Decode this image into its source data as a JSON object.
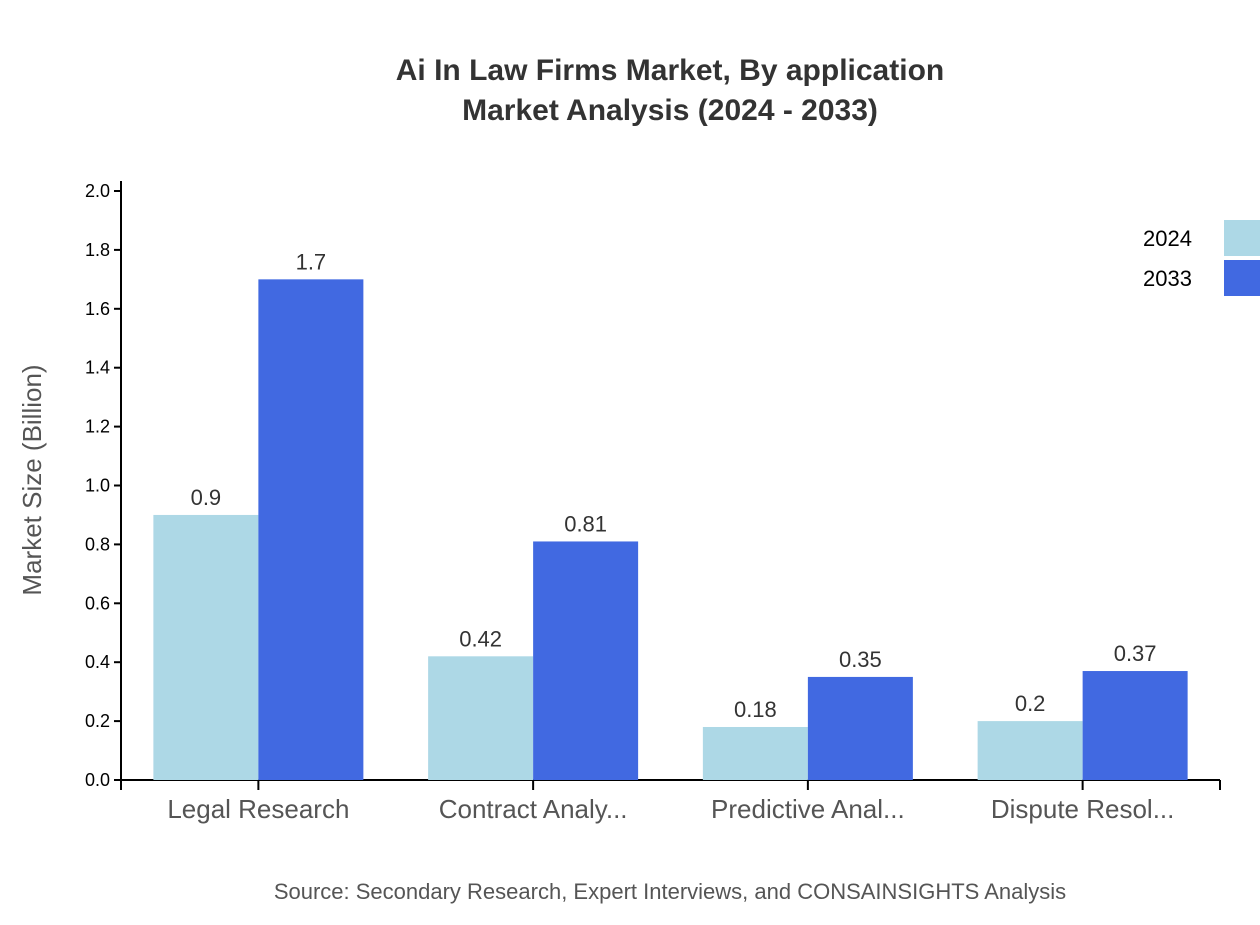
{
  "chart_data": {
    "type": "bar",
    "title": "Ai In Law Firms Market, By application",
    "subtitle": "Market Analysis (2024 - 2033)",
    "xlabel": "",
    "ylabel": "Market Size (Billion)",
    "ylim": [
      0,
      2.0
    ],
    "yticks": [
      "0.0",
      "0.2",
      "0.4",
      "0.6",
      "0.8",
      "1.0",
      "1.2",
      "1.4",
      "1.6",
      "1.8",
      "2.0"
    ],
    "categories": [
      "Legal Research",
      "Contract Analy...",
      "Predictive Anal...",
      "Dispute Resol..."
    ],
    "series": [
      {
        "name": "2024",
        "color": "#ADD8E6",
        "values": [
          0.9,
          0.42,
          0.18,
          0.2
        ],
        "labels": [
          "0.9",
          "0.42",
          "0.18",
          "0.2"
        ]
      },
      {
        "name": "2033",
        "color": "#4169E1",
        "values": [
          1.7,
          0.81,
          0.35,
          0.37
        ],
        "labels": [
          "1.7",
          "0.81",
          "0.35",
          "0.37"
        ]
      }
    ],
    "grid": false,
    "legend": "top-right",
    "source": "Source: Secondary Research, Expert Interviews, and CONSAINSIGHTS Analysis"
  }
}
